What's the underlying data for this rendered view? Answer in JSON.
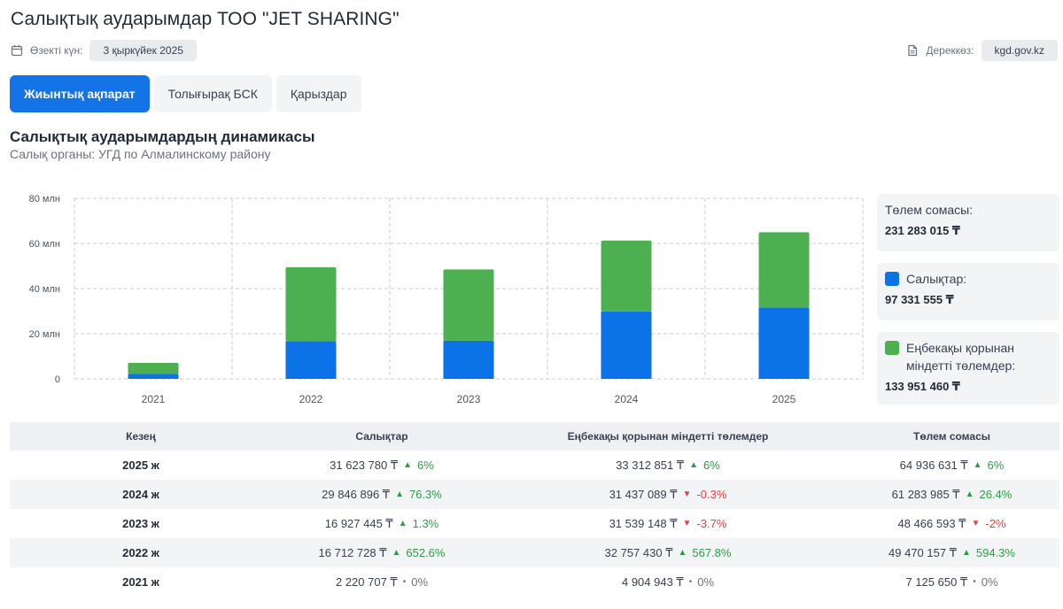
{
  "header": {
    "title": "Салықтық аударымдар ТОО \"JET SHARING\"",
    "date_label": "Өзекті күн:",
    "date_value": "3 қыркүйек 2025",
    "source_label": "Дереккөз:",
    "source_value": "kgd.gov.kz"
  },
  "tabs": [
    {
      "label": "Жиынтық ақпарат",
      "active": true
    },
    {
      "label": "Толығырақ БСК",
      "active": false
    },
    {
      "label": "Қарыздар",
      "active": false
    }
  ],
  "section": {
    "title": "Салықтық аударымдардың динамикасы",
    "subtitle": "Салық органы: УГД по Алмалинскому району"
  },
  "colors": {
    "taxes": "#0b72e7",
    "payroll": "#4caf50",
    "accent": "#1473e6"
  },
  "chart_data": {
    "type": "bar",
    "stacked": true,
    "categories": [
      "2021",
      "2022",
      "2023",
      "2024",
      "2025"
    ],
    "series": [
      {
        "name": "Салықтар",
        "values": [
          2220707,
          16712728,
          16927445,
          29846896,
          31623780
        ]
      },
      {
        "name": "Еңбекақы қорынан міндетті төлемдер",
        "values": [
          4904943,
          32757430,
          31539148,
          31437089,
          33312851
        ]
      }
    ],
    "ylim": [
      0,
      80000000
    ],
    "yticks": [
      0,
      20000000,
      40000000,
      60000000,
      80000000
    ],
    "ytick_labels": [
      "0",
      "20 млн",
      "40 млн",
      "60 млн",
      "80 млн"
    ],
    "grid": true
  },
  "legend": {
    "total_label": "Төлем сомасы:",
    "total_value": "231 283 015 ₸",
    "taxes_label": "Салықтар:",
    "taxes_value": "97 331 555 ₸",
    "payroll_label": "Еңбекақы қорынан міндетті төлемдер:",
    "payroll_value": "133 951 460 ₸"
  },
  "table": {
    "headers": [
      "Кезең",
      "Салықтар",
      "Еңбекақы қорынан міндетті төлемдер",
      "Төлем сомасы"
    ],
    "rows": [
      {
        "period": "2025 ж",
        "taxes": "31 623 780 ₸",
        "taxes_chg": "6%",
        "taxes_dir": "up",
        "payroll": "33 312 851 ₸",
        "payroll_chg": "6%",
        "payroll_dir": "up",
        "total": "64 936 631 ₸",
        "total_chg": "6%",
        "total_dir": "up"
      },
      {
        "period": "2024 ж",
        "taxes": "29 846 896 ₸",
        "taxes_chg": "76.3%",
        "taxes_dir": "up",
        "payroll": "31 437 089 ₸",
        "payroll_chg": "-0.3%",
        "payroll_dir": "down",
        "total": "61 283 985 ₸",
        "total_chg": "26.4%",
        "total_dir": "up"
      },
      {
        "period": "2023 ж",
        "taxes": "16 927 445 ₸",
        "taxes_chg": "1.3%",
        "taxes_dir": "up",
        "payroll": "31 539 148 ₸",
        "payroll_chg": "-3.7%",
        "payroll_dir": "down",
        "total": "48 466 593 ₸",
        "total_chg": "-2%",
        "total_dir": "down"
      },
      {
        "period": "2022 ж",
        "taxes": "16 712 728 ₸",
        "taxes_chg": "652.6%",
        "taxes_dir": "up",
        "payroll": "32 757 430 ₸",
        "payroll_chg": "567.8%",
        "payroll_dir": "up",
        "total": "49 470 157 ₸",
        "total_chg": "594.3%",
        "total_dir": "up"
      },
      {
        "period": "2021 ж",
        "taxes": "2 220 707 ₸",
        "taxes_chg": "0%",
        "taxes_dir": "flat",
        "payroll": "4 904 943 ₸",
        "payroll_chg": "0%",
        "payroll_dir": "flat",
        "total": "7 125 650 ₸",
        "total_chg": "0%",
        "total_dir": "flat"
      }
    ]
  }
}
